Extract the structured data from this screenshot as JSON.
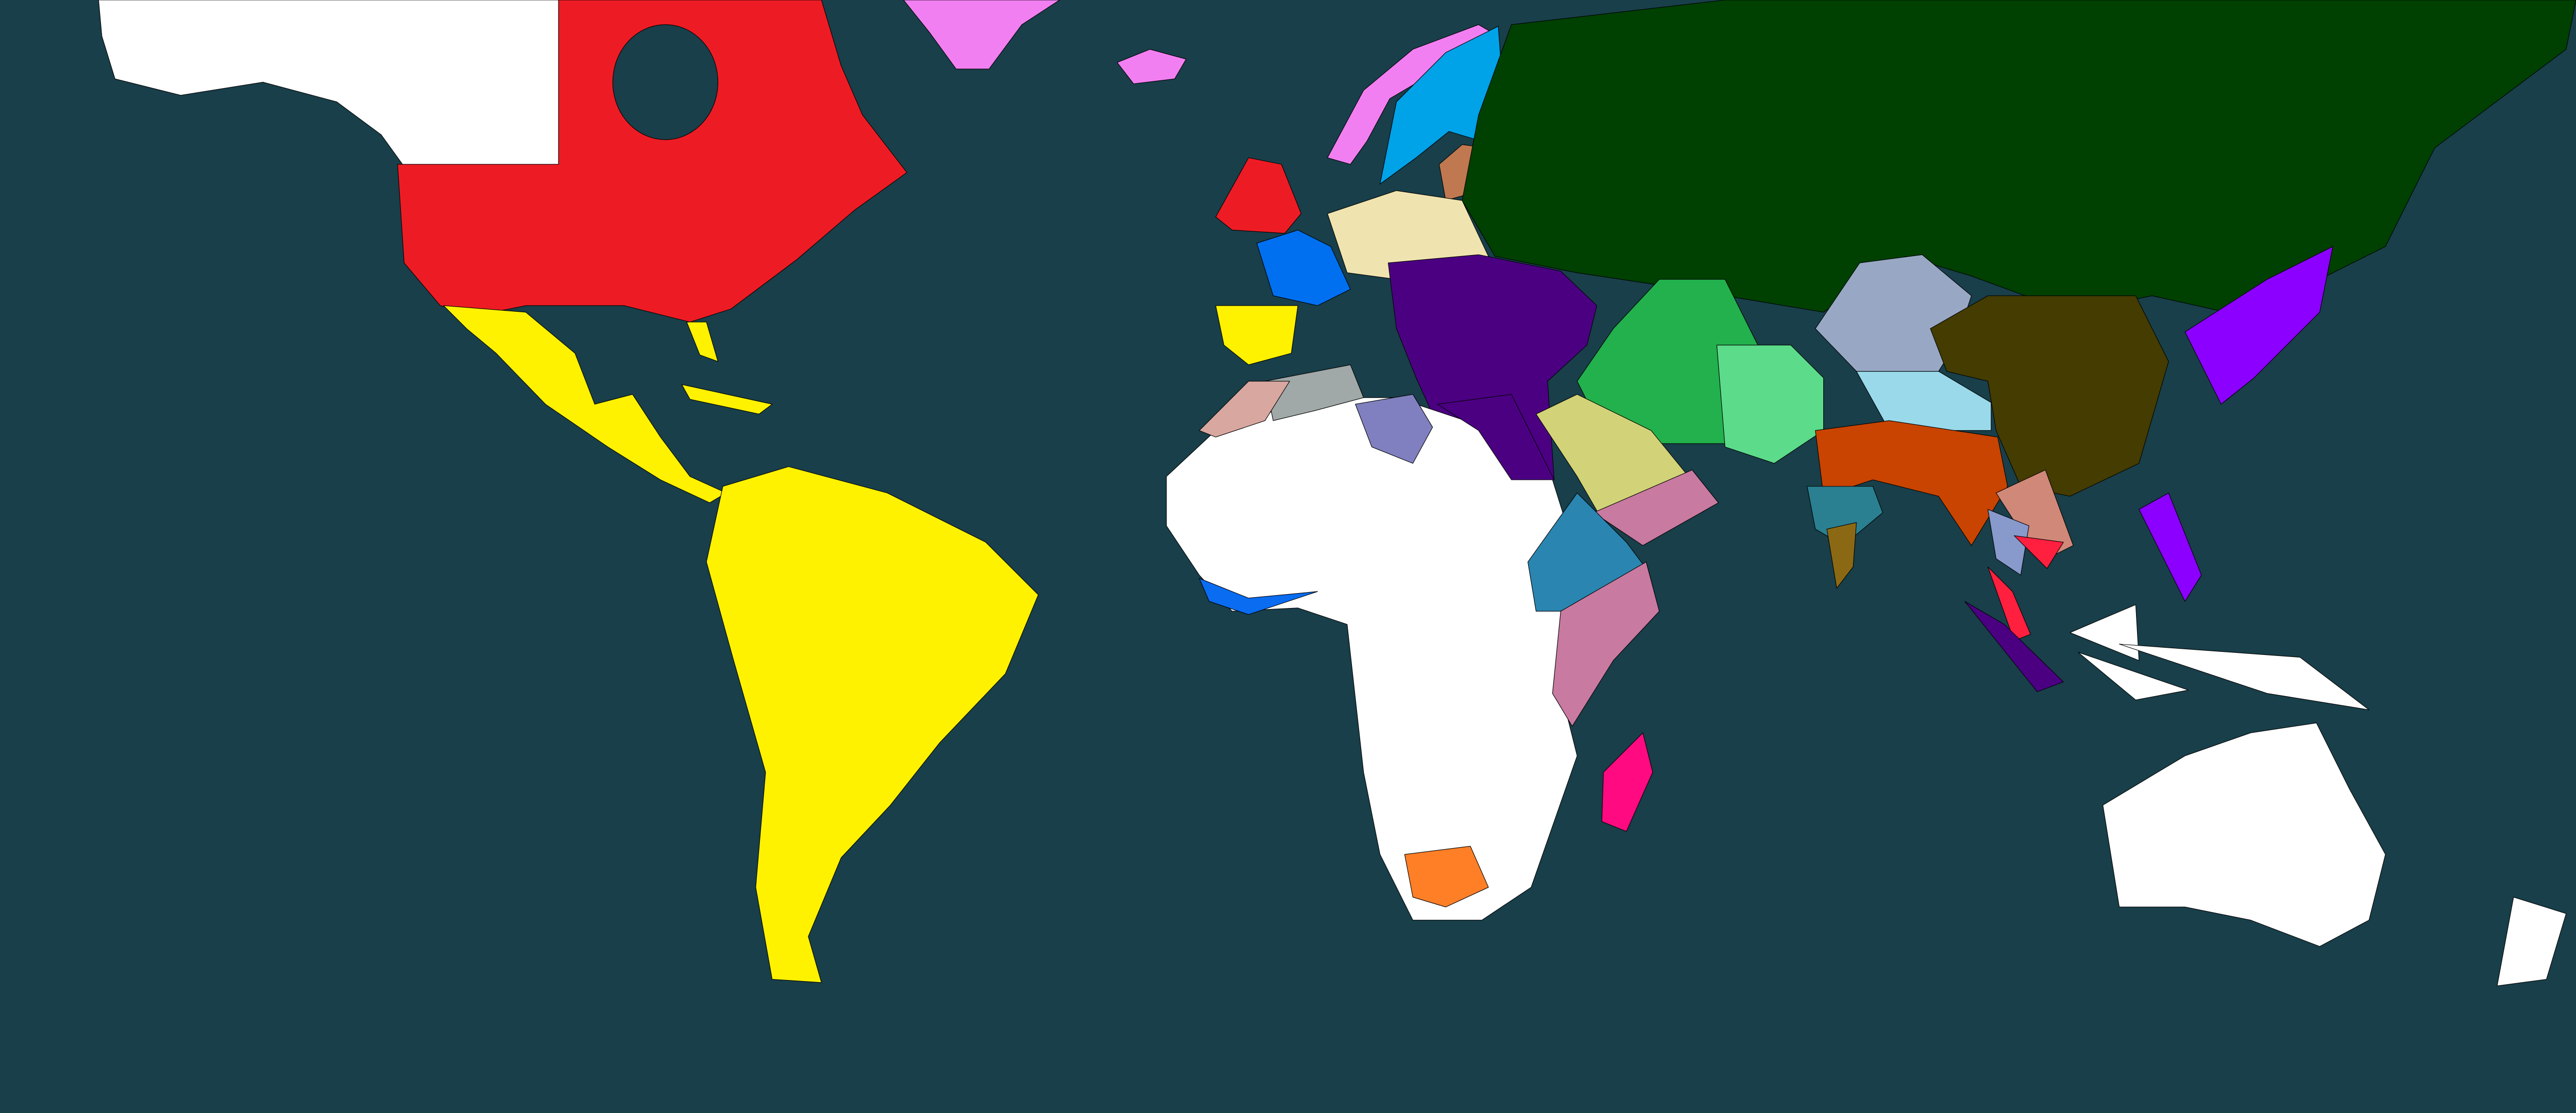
{
  "map": {
    "ocean_color": "#183f4a",
    "border_color": "#000000",
    "colors": {
      "unclaimed": "#ffffff",
      "north_america_red": "#ed1c24",
      "americas_yellow": "#fff200",
      "greenland_pink": "#f27ff2",
      "scandinavia_blue": "#00a2e8",
      "baltic_brown": "#c07850",
      "russia_green": "#004000",
      "britain_red": "#ed1c24",
      "france_blue": "#0070f0",
      "germany_beige": "#efe4b0",
      "iberia_yellow": "#fff200",
      "ottoman_purple": "#4b0082",
      "persia_green": "#22b14c",
      "afghan_green": "#5cdb8a",
      "central_asia_grey": "#98a8c4",
      "tibet_lightblue": "#99d9ea",
      "india_orange": "#c84400",
      "south_india_teal": "#2a8090",
      "ceylon_brown": "#8b6914",
      "china_olive": "#443c00",
      "japan_violet": "#8b00ff",
      "arabia_khaki": "#d2d278",
      "south_arabia_pink": "#c87aa0",
      "ethiopia_blue": "#2a85b0",
      "east_africa_pink": "#c87aa0",
      "libya_lavender": "#8080c0",
      "morocco_pink": "#d8a8a0",
      "algeria_grey": "#a0a8a8",
      "guinea_blue": "#0a6cf0",
      "south_africa_orange": "#ff7f27",
      "madagascar_pink": "#ff0a80",
      "indochina_rose": "#d08878",
      "laos_blue": "#8899cc",
      "cambodia_red": "#ff1f3f",
      "sumatra_indigo": "#4b0082"
    }
  }
}
